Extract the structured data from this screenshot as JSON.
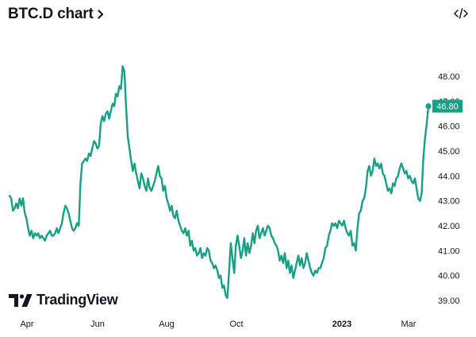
{
  "header": {
    "title": "BTC.D chart",
    "chevron_icon": "chevron-right-icon",
    "embed_icon": "code-embed-icon"
  },
  "brand": {
    "name": "TradingView",
    "icon": "tradingview-logo-icon"
  },
  "colors": {
    "line": "#16a085",
    "text": "#131722",
    "tag_bg": "#16a085"
  },
  "chart_data": {
    "type": "line",
    "y_ticks": [
      "48.00",
      "47.00",
      "46.00",
      "45.00",
      "44.00",
      "43.00",
      "42.00",
      "41.00",
      "40.00",
      "39.00"
    ],
    "x_ticks": [
      {
        "label": "Apr",
        "bold": false
      },
      {
        "label": "Jun",
        "bold": false
      },
      {
        "label": "Aug",
        "bold": false
      },
      {
        "label": "Oct",
        "bold": false
      },
      {
        "label": "2023",
        "bold": true
      },
      {
        "label": "Mar",
        "bold": false
      }
    ],
    "ylim": [
      39,
      48
    ],
    "last_value": "46.80",
    "series": [
      {
        "values": [
          43.2,
          43.1,
          42.6,
          42.7,
          42.9,
          42.7,
          43.1,
          42.8,
          43.1,
          42.5,
          42.3,
          41.9,
          41.6,
          41.8,
          41.5,
          41.7,
          41.6,
          41.7,
          41.5,
          41.6,
          41.5,
          41.4,
          41.6,
          41.7,
          41.8,
          41.6,
          41.6,
          41.7,
          41.9,
          41.7,
          41.9,
          42.1,
          42.5,
          42.8,
          42.7,
          42.5,
          42.2,
          41.9,
          41.8,
          41.9,
          42.1,
          42.0,
          43.7,
          44.5,
          44.6,
          44.7,
          44.6,
          44.9,
          44.8,
          45.1,
          45.4,
          45.3,
          45.1,
          45.2,
          46.1,
          46.4,
          46.2,
          46.5,
          46.6,
          46.3,
          46.6,
          46.9,
          46.8,
          47.3,
          47.2,
          47.6,
          47.5,
          48.4,
          48.2,
          46.8,
          45.6,
          45.1,
          44.6,
          44.2,
          44.5,
          44.1,
          43.8,
          43.5,
          44.1,
          43.9,
          43.6,
          43.4,
          43.9,
          43.5,
          43.4,
          43.6,
          43.8,
          44.1,
          44.4,
          44.0,
          43.9,
          43.4,
          43.6,
          43.1,
          42.9,
          42.6,
          42.8,
          42.4,
          42.3,
          42.6,
          42.2,
          42.0,
          41.8,
          41.7,
          41.9,
          41.6,
          41.8,
          41.2,
          41.4,
          41.0,
          41.1,
          40.8,
          40.9,
          41.1,
          40.7,
          40.9,
          40.8,
          41.1,
          41.0,
          40.6,
          40.5,
          40.3,
          40.4,
          40.2,
          39.9,
          40.0,
          39.5,
          39.6,
          39.2,
          39.1,
          40.2,
          41.3,
          40.7,
          40.1,
          41.2,
          41.6,
          41.2,
          40.7,
          41.0,
          41.5,
          40.8,
          41.3,
          40.9,
          41.2,
          41.7,
          41.3,
          41.8,
          42.0,
          41.5,
          41.7,
          41.9,
          41.6,
          41.8,
          42.0,
          41.9,
          41.6,
          41.5,
          41.3,
          41.2,
          41.0,
          40.6,
          40.8,
          40.5,
          40.9,
          40.3,
          40.6,
          40.1,
          40.4,
          39.9,
          40.2,
          40.5,
          40.8,
          40.4,
          40.7,
          40.3,
          40.5,
          40.9,
          40.6,
          40.3,
          40.1,
          40.0,
          40.2,
          40.1,
          40.3,
          40.3,
          40.5,
          40.7,
          41.1,
          41.2,
          41.6,
          41.8,
          42.1,
          42.0,
          42.1,
          41.9,
          42.2,
          42.1,
          42.0,
          42.2,
          41.9,
          41.7,
          41.6,
          41.8,
          41.2,
          41.3,
          41.0,
          41.9,
          42.5,
          42.6,
          43.0,
          43.1,
          43.5,
          44.2,
          44.4,
          44.0,
          44.2,
          44.7,
          44.4,
          44.5,
          44.3,
          44.5,
          44.1,
          44.0,
          43.7,
          43.4,
          43.5,
          43.3,
          43.7,
          43.6,
          43.9,
          44.0,
          44.3,
          44.5,
          44.3,
          44.1,
          44.2,
          43.9,
          44.0,
          43.8,
          43.7,
          43.9,
          43.5,
          43.1,
          43.0,
          43.3,
          44.7,
          45.5,
          46.1,
          46.8
        ]
      }
    ]
  }
}
